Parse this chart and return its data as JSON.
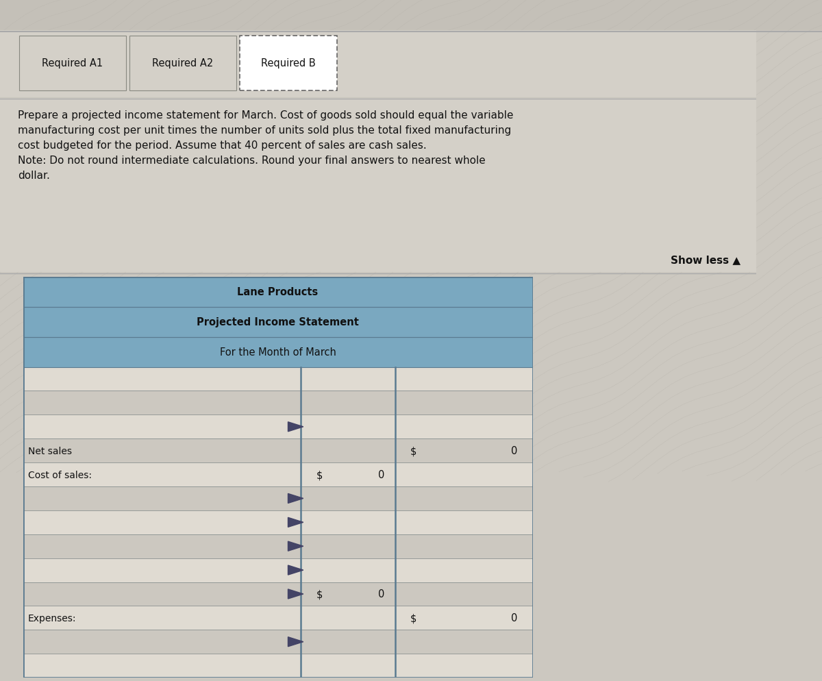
{
  "tab_labels": [
    "Required A1",
    "Required A2",
    "Required B"
  ],
  "instruction_text": "Prepare a projected income statement for March. Cost of goods sold should equal the variable\nmanufacturing cost per unit times the number of units sold plus the total fixed manufacturing\ncost budgeted for the period. Assume that 40 percent of sales are cash sales.\nNote: Do not round intermediate calculations. Round your final answers to nearest whole\ndollar.",
  "show_less_text": "Show less ▲",
  "company_name": "Lane Products",
  "statement_title": "Projected Income Statement",
  "statement_period": "For the Month of March",
  "bg_outer": "#b8b8b8",
  "bg_top_stripe": "#c0c0c0",
  "bg_wavy": "#c8c4bc",
  "bg_tab_bar": "#d8d4ce",
  "bg_instruction": "#d8d4ce",
  "bg_header_blue": "#7aa8c0",
  "tab_active_bg": "#ffffff",
  "tab_inactive_bg": "#d8d4ce",
  "table_row_light": "#e0dbd2",
  "table_row_dark": "#ccc8c0",
  "table_header_line": "#5a7a90",
  "col_line_color": "#5a7a90",
  "row_line_color": "#8a9090"
}
